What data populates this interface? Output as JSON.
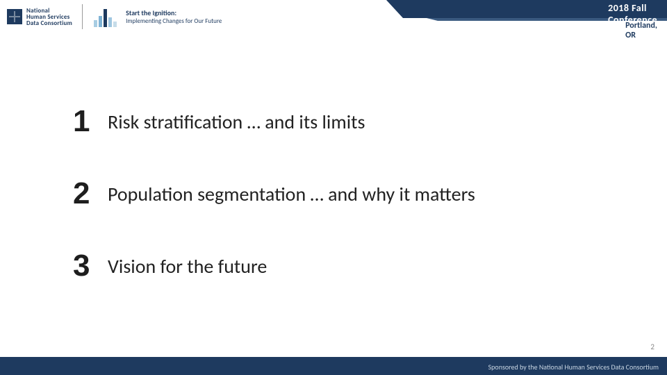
{
  "colors": {
    "brand_navy": "#1e3a5f",
    "banner_lip": "#3a5a80",
    "text_dark": "#222222",
    "page_num": "#888888",
    "sponsor_text": "#c9d6e3",
    "background": "#ffffff"
  },
  "header": {
    "org": {
      "line1": "National",
      "line2": "Human Services",
      "line3": "Data Consortium"
    },
    "tagline": {
      "title": "Start the Ignition:",
      "subtitle": "Implementing Changes for Our Future"
    },
    "conference": {
      "title": "2018 Fall Conference",
      "location": "Portland, OR"
    }
  },
  "agenda": {
    "items": [
      {
        "num": "1",
        "label": "Risk stratification … and its limits"
      },
      {
        "num": "2",
        "label": "Population segmentation … and why it matters"
      },
      {
        "num": "3",
        "label": "Vision for the future"
      }
    ],
    "num_fontsize": 44,
    "label_fontsize": 28,
    "row_gap": 54
  },
  "footer": {
    "page_number": "2",
    "sponsor_text": "Sponsored by the National Human Services Data Consortium"
  }
}
